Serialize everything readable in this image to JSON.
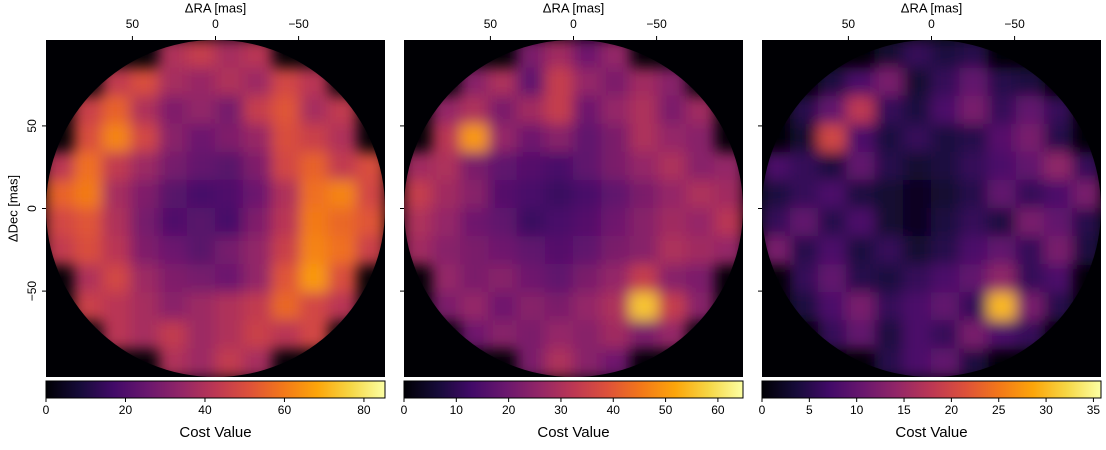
{
  "chart_data": [
    {
      "type": "heatmap",
      "xlabel": "ΔRA [mas]",
      "ylabel": "ΔDec [mas]",
      "colormap": "inferno",
      "xlim": [
        102,
        -102
      ],
      "ylim": [
        -102,
        102
      ],
      "xticks": [
        50,
        0,
        {
          "value": -50,
          "label": "−50"
        }
      ],
      "yticks": [
        50,
        0,
        {
          "value": -50,
          "label": "−50"
        }
      ],
      "show_ytick_labels": true,
      "clim": [
        0,
        85.3
      ],
      "cticks": [
        0,
        20,
        40,
        60,
        80
      ],
      "clabel": "Cost Value",
      "z": [
        [
          null,
          null,
          null,
          null,
          40,
          45,
          38,
          42,
          null,
          null,
          null,
          null
        ],
        [
          null,
          null,
          44,
          50,
          38,
          35,
          40,
          36,
          48,
          42,
          null,
          null
        ],
        [
          null,
          46,
          55,
          40,
          30,
          34,
          28,
          45,
          52,
          38,
          44,
          null
        ],
        [
          null,
          50,
          62,
          48,
          32,
          26,
          30,
          35,
          50,
          46,
          40,
          null
        ],
        [
          42,
          58,
          44,
          36,
          28,
          24,
          22,
          30,
          48,
          55,
          44,
          50
        ],
        [
          55,
          60,
          38,
          30,
          22,
          18,
          20,
          26,
          40,
          58,
          62,
          48
        ],
        [
          48,
          52,
          40,
          28,
          20,
          22,
          18,
          30,
          42,
          60,
          56,
          52
        ],
        [
          44,
          50,
          42,
          30,
          26,
          22,
          28,
          34,
          46,
          62,
          58,
          46
        ],
        [
          null,
          40,
          48,
          36,
          30,
          28,
          26,
          34,
          52,
          66,
          50,
          null
        ],
        [
          null,
          46,
          42,
          38,
          32,
          36,
          40,
          44,
          56,
          48,
          42,
          null
        ],
        [
          null,
          null,
          42,
          38,
          44,
          36,
          40,
          46,
          42,
          48,
          null,
          null
        ],
        [
          null,
          null,
          null,
          null,
          40,
          36,
          44,
          38,
          null,
          null,
          null,
          null
        ]
      ]
    },
    {
      "type": "heatmap",
      "xlabel": "ΔRA [mas]",
      "colormap": "inferno",
      "xlim": [
        102,
        -102
      ],
      "ylim": [
        -102,
        102
      ],
      "xticks": [
        50,
        0,
        {
          "value": -50,
          "label": "−50"
        }
      ],
      "yticks": [
        50,
        0,
        -50
      ],
      "show_ytick_labels": false,
      "clim": [
        0,
        64.8
      ],
      "cticks": [
        0,
        10,
        20,
        30,
        40,
        50,
        60
      ],
      "clabel": "Cost Value",
      "z": [
        [
          null,
          null,
          null,
          null,
          22,
          28,
          20,
          26,
          null,
          null,
          null,
          null
        ],
        [
          null,
          null,
          24,
          30,
          18,
          34,
          26,
          22,
          28,
          24,
          null,
          null
        ],
        [
          null,
          26,
          30,
          22,
          28,
          34,
          20,
          26,
          30,
          22,
          28,
          null
        ],
        [
          null,
          32,
          50,
          26,
          20,
          24,
          18,
          22,
          30,
          26,
          24,
          null
        ],
        [
          28,
          30,
          22,
          18,
          16,
          14,
          18,
          22,
          26,
          30,
          24,
          26
        ],
        [
          34,
          28,
          24,
          16,
          14,
          12,
          14,
          18,
          22,
          26,
          30,
          28
        ],
        [
          30,
          26,
          20,
          18,
          12,
          14,
          16,
          20,
          24,
          28,
          26,
          32
        ],
        [
          28,
          24,
          22,
          20,
          18,
          16,
          18,
          22,
          24,
          30,
          28,
          26
        ],
        [
          null,
          26,
          22,
          24,
          20,
          18,
          22,
          26,
          34,
          24,
          22,
          null
        ],
        [
          null,
          22,
          26,
          20,
          24,
          22,
          26,
          30,
          56,
          34,
          24,
          null
        ],
        [
          null,
          null,
          20,
          24,
          22,
          26,
          24,
          28,
          22,
          26,
          null,
          null
        ],
        [
          null,
          null,
          null,
          null,
          22,
          30,
          24,
          20,
          null,
          null,
          null,
          null
        ]
      ]
    },
    {
      "type": "heatmap",
      "xlabel": "ΔRA [mas]",
      "colormap": "inferno",
      "xlim": [
        102,
        -102
      ],
      "ylim": [
        -102,
        102
      ],
      "xticks": [
        50,
        0,
        {
          "value": -50,
          "label": "−50"
        }
      ],
      "yticks": [
        50,
        0,
        -50
      ],
      "show_ytick_labels": false,
      "clim": [
        0,
        35.8
      ],
      "cticks": [
        0,
        5,
        10,
        15,
        20,
        25,
        30,
        35
      ],
      "clabel": "Cost Value",
      "z": [
        [
          null,
          null,
          null,
          null,
          3,
          6,
          4,
          5,
          null,
          null,
          null,
          null
        ],
        [
          null,
          null,
          4,
          8,
          12,
          3,
          6,
          10,
          5,
          4,
          null,
          null
        ],
        [
          null,
          5,
          10,
          18,
          6,
          4,
          8,
          12,
          6,
          10,
          6,
          null
        ],
        [
          null,
          3,
          20,
          8,
          4,
          6,
          4,
          5,
          9,
          12,
          5,
          null
        ],
        [
          8,
          6,
          4,
          10,
          5,
          3,
          4,
          6,
          8,
          10,
          14,
          6
        ],
        [
          4,
          6,
          8,
          4,
          3,
          2,
          3,
          5,
          10,
          6,
          8,
          12
        ],
        [
          6,
          10,
          5,
          8,
          3,
          2,
          4,
          6,
          4,
          12,
          10,
          5
        ],
        [
          12,
          5,
          8,
          4,
          6,
          3,
          5,
          8,
          10,
          6,
          12,
          4
        ],
        [
          null,
          6,
          10,
          5,
          4,
          6,
          8,
          10,
          14,
          6,
          8,
          null
        ],
        [
          null,
          4,
          8,
          12,
          6,
          8,
          10,
          6,
          30,
          12,
          5,
          null
        ],
        [
          null,
          null,
          6,
          10,
          4,
          8,
          6,
          12,
          8,
          6,
          null,
          null
        ],
        [
          null,
          null,
          null,
          null,
          5,
          8,
          10,
          4,
          null,
          null,
          null,
          null
        ]
      ]
    }
  ]
}
